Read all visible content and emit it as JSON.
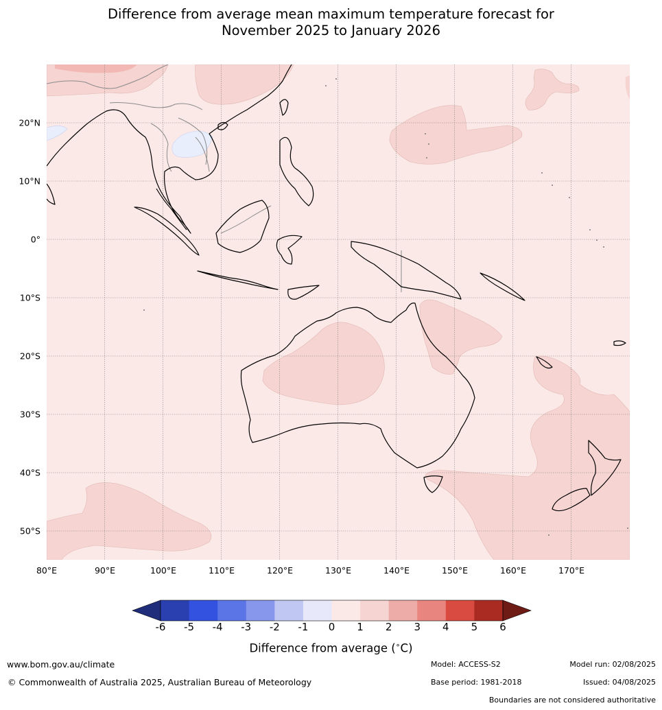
{
  "title": {
    "line1": "Difference from average mean maximum temperature forecast for",
    "line2": "November 2025 to January 2026"
  },
  "map": {
    "lon_labels": [
      "80°E",
      "90°E",
      "100°E",
      "110°E",
      "120°E",
      "130°E",
      "140°E",
      "150°E",
      "160°E",
      "170°E"
    ],
    "lat_labels": [
      "20°N",
      "10°N",
      "0°",
      "10°S",
      "20°S",
      "30°S",
      "40°S",
      "50°S"
    ],
    "background_class_color": "#fbe9e7",
    "anomaly_patch_color": "#f5d4d2",
    "cool_patch_color": "#e9eefc",
    "warm_patch_color": "#f2b8b3"
  },
  "colorbar": {
    "ticks": [
      "-6",
      "-5",
      "-4",
      "-3",
      "-2",
      "-1",
      "0",
      "1",
      "2",
      "3",
      "4",
      "5",
      "6"
    ],
    "colors": [
      "#1f2d7a",
      "#2a3fb0",
      "#3352e0",
      "#5b75e6",
      "#8797eb",
      "#c0c7f3",
      "#e7e9fb",
      "#fbe9e7",
      "#f5d4d2",
      "#edaca7",
      "#e8857e",
      "#d94b40",
      "#a92b22",
      "#6e1a15"
    ],
    "label": "Difference from average (°C)",
    "label_text": "Difference from average (",
    "label_unit": "∘",
    "label_end": "C)"
  },
  "footer": {
    "website": "www.bom.gov.au/climate",
    "copyright": "© Commonwealth of Australia 2025, Australian Bureau of Meteorology",
    "model": "Model: ACCESS-S2",
    "base_period": "Base period: 1981-2018",
    "model_run": "Model run: 02/08/2025",
    "issued": "Issued: 04/08/2025",
    "boundaries": "Boundaries are not considered authoritative"
  }
}
